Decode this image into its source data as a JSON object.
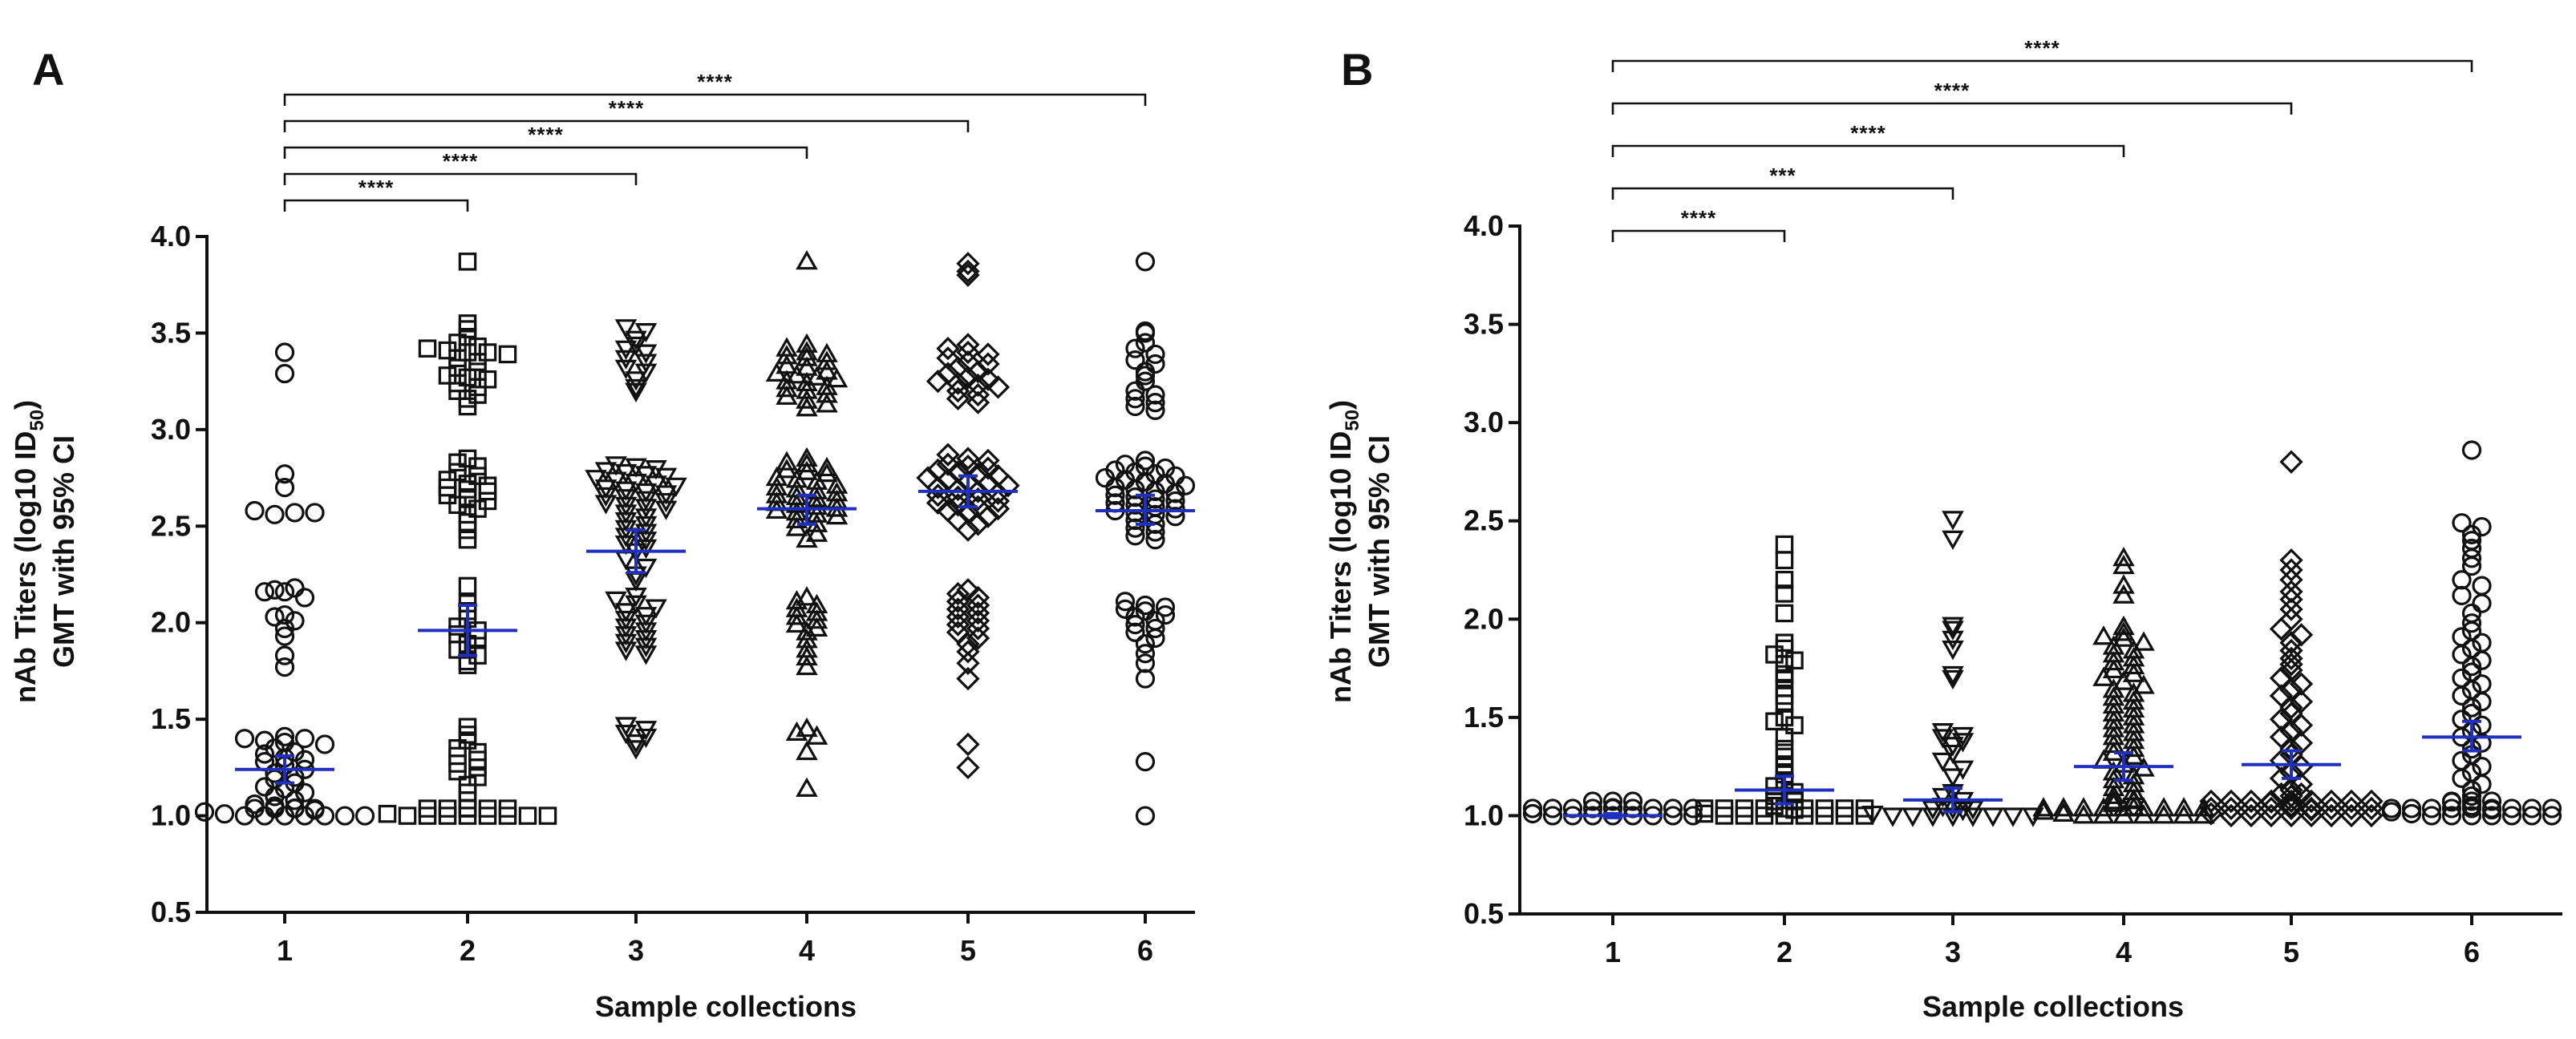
{
  "chart_data": [
    {
      "panel": "A",
      "type": "scatter",
      "subtype": "dot-plot with GMT and 95% CI",
      "xlabel": "Sample collections",
      "ylabel_line1": "nAb Titers (log10 ID50)",
      "ylabel_line1_parts": [
        "nAb Titers (log10 ID",
        "50",
        ")"
      ],
      "ylabel_line2": "GMT with 95% CI",
      "categories": [
        "1",
        "2",
        "3",
        "4",
        "5",
        "6"
      ],
      "ylim": [
        0.5,
        4.0
      ],
      "yticks": [
        "0.5",
        "1.0",
        "1.5",
        "2.0",
        "2.5",
        "3.0",
        "3.5",
        "4.0"
      ],
      "gmt_color": "#1f2fbf",
      "marker_color": "#111111",
      "series": [
        {
          "name": "1",
          "marker": "circle",
          "gmt": 1.24,
          "ci": [
            1.17,
            1.31
          ],
          "values": [
            3.4,
            3.29,
            2.77,
            2.7,
            2.58,
            2.56,
            2.57,
            2.57,
            2.17,
            2.18,
            2.16,
            2.16,
            2.13,
            2.03,
            2.01,
            2.04,
            1.97,
            1.93,
            1.77,
            1.83,
            1.4,
            1.41,
            1.39,
            1.38,
            1.4,
            1.37,
            1.35,
            1.32,
            1.33,
            1.3,
            1.29,
            1.28,
            1.26,
            1.24,
            1.22,
            1.2,
            1.19,
            1.17,
            1.15,
            1.14,
            1.12,
            1.1,
            1.08,
            1.06,
            1.05,
            1.04,
            1.03,
            1.02,
            1.01,
            1.0,
            1.0,
            1.0,
            1.0,
            1.0,
            1.0,
            1.0,
            1.0,
            1.0,
            1.0,
            1.0
          ]
        },
        {
          "name": "2",
          "marker": "square",
          "gmt": 1.96,
          "ci": [
            1.83,
            2.09
          ],
          "values": [
            3.87,
            3.55,
            3.52,
            3.48,
            3.45,
            3.43,
            3.42,
            3.41,
            3.4,
            3.4,
            3.39,
            3.37,
            3.35,
            3.32,
            3.3,
            3.28,
            3.27,
            3.26,
            3.24,
            3.22,
            3.2,
            3.18,
            3.16,
            3.12,
            2.85,
            2.83,
            2.81,
            2.78,
            2.76,
            2.74,
            2.72,
            2.71,
            2.7,
            2.69,
            2.68,
            2.66,
            2.65,
            2.63,
            2.61,
            2.59,
            2.56,
            2.52,
            2.48,
            2.43,
            2.19,
            2.1,
            2.06,
            2.02,
            1.98,
            1.96,
            1.94,
            1.92,
            1.89,
            1.86,
            1.83,
            1.8,
            1.78,
            1.46,
            1.42,
            1.39,
            1.35,
            1.33,
            1.31,
            1.29,
            1.27,
            1.25,
            1.23,
            1.2,
            1.16,
            1.12,
            1.08,
            1.04,
            1.01,
            1.0,
            1.0,
            1.0,
            1.0,
            1.0,
            1.0,
            1.0,
            1.0,
            1.0,
            1.0,
            1.0,
            1.0,
            1.0
          ]
        },
        {
          "name": "3",
          "marker": "triangle-down",
          "gmt": 2.37,
          "ci": [
            2.26,
            2.48
          ],
          "values": [
            3.53,
            3.51,
            3.47,
            3.44,
            3.42,
            3.4,
            3.37,
            3.35,
            3.32,
            3.3,
            3.26,
            3.22,
            3.2,
            2.82,
            2.81,
            2.8,
            2.79,
            2.78,
            2.77,
            2.76,
            2.75,
            2.74,
            2.73,
            2.72,
            2.71,
            2.7,
            2.69,
            2.68,
            2.67,
            2.66,
            2.65,
            2.64,
            2.63,
            2.62,
            2.61,
            2.6,
            2.59,
            2.57,
            2.55,
            2.53,
            2.51,
            2.49,
            2.47,
            2.45,
            2.43,
            2.41,
            2.39,
            2.37,
            2.33,
            2.29,
            2.25,
            2.22,
            2.14,
            2.12,
            2.1,
            2.08,
            2.06,
            2.04,
            2.02,
            2.0,
            1.98,
            1.96,
            1.94,
            1.92,
            1.9,
            1.88,
            1.86,
            1.84,
            1.47,
            1.45,
            1.43,
            1.41,
            1.38,
            1.35
          ]
        },
        {
          "name": "4",
          "marker": "triangle-up",
          "gmt": 2.59,
          "ci": [
            2.51,
            2.66
          ],
          "values": [
            3.87,
            3.44,
            3.42,
            3.4,
            3.39,
            3.38,
            3.37,
            3.35,
            3.33,
            3.32,
            3.3,
            3.29,
            3.28,
            3.27,
            3.26,
            3.25,
            3.24,
            3.22,
            3.21,
            3.2,
            3.18,
            3.17,
            3.15,
            3.13,
            3.11,
            2.85,
            2.83,
            2.82,
            2.8,
            2.79,
            2.78,
            2.77,
            2.75,
            2.74,
            2.73,
            2.71,
            2.7,
            2.69,
            2.68,
            2.67,
            2.66,
            2.65,
            2.64,
            2.63,
            2.62,
            2.61,
            2.6,
            2.59,
            2.58,
            2.57,
            2.56,
            2.55,
            2.53,
            2.51,
            2.49,
            2.46,
            2.43,
            2.13,
            2.11,
            2.09,
            2.07,
            2.05,
            2.03,
            2.01,
            1.99,
            1.97,
            1.95,
            1.91,
            1.86,
            1.82,
            1.77,
            1.45,
            1.43,
            1.41,
            1.33,
            1.14
          ]
        },
        {
          "name": "5",
          "marker": "diamond",
          "gmt": 2.68,
          "ci": [
            2.6,
            2.76
          ],
          "values": [
            3.86,
            3.82,
            3.8,
            3.44,
            3.42,
            3.4,
            3.39,
            3.37,
            3.35,
            3.34,
            3.32,
            3.3,
            3.29,
            3.27,
            3.26,
            3.25,
            3.24,
            3.23,
            3.22,
            3.2,
            3.18,
            3.16,
            3.14,
            2.87,
            2.85,
            2.84,
            2.82,
            2.81,
            2.8,
            2.79,
            2.78,
            2.77,
            2.76,
            2.75,
            2.74,
            2.73,
            2.72,
            2.71,
            2.7,
            2.69,
            2.68,
            2.67,
            2.66,
            2.65,
            2.64,
            2.63,
            2.62,
            2.61,
            2.6,
            2.59,
            2.58,
            2.57,
            2.55,
            2.53,
            2.51,
            2.48,
            2.17,
            2.15,
            2.13,
            2.11,
            2.09,
            2.07,
            2.05,
            2.03,
            2.01,
            1.99,
            1.97,
            1.95,
            1.92,
            1.89,
            1.85,
            1.79,
            1.71,
            1.37,
            1.25
          ]
        },
        {
          "name": "6",
          "marker": "circle",
          "gmt": 2.58,
          "ci": [
            2.51,
            2.66
          ],
          "values": [
            3.87,
            3.51,
            3.5,
            3.45,
            3.42,
            3.39,
            3.36,
            3.34,
            3.3,
            3.28,
            3.25,
            3.2,
            3.18,
            3.16,
            3.14,
            3.12,
            3.1,
            2.84,
            2.82,
            2.81,
            2.8,
            2.79,
            2.78,
            2.77,
            2.76,
            2.75,
            2.74,
            2.73,
            2.72,
            2.71,
            2.7,
            2.69,
            2.68,
            2.67,
            2.66,
            2.65,
            2.64,
            2.63,
            2.62,
            2.61,
            2.6,
            2.59,
            2.58,
            2.57,
            2.56,
            2.55,
            2.53,
            2.51,
            2.49,
            2.47,
            2.45,
            2.43,
            2.11,
            2.09,
            2.08,
            2.07,
            2.06,
            2.04,
            2.03,
            2.01,
            1.99,
            1.97,
            1.95,
            1.92,
            1.89,
            1.84,
            1.79,
            1.71,
            1.28,
            1.0
          ]
        }
      ],
      "comparisons": [
        {
          "from": "1",
          "to": "2",
          "label": "****"
        },
        {
          "from": "1",
          "to": "3",
          "label": "****"
        },
        {
          "from": "1",
          "to": "4",
          "label": "****"
        },
        {
          "from": "1",
          "to": "5",
          "label": "****"
        },
        {
          "from": "1",
          "to": "6",
          "label": "****"
        }
      ]
    },
    {
      "panel": "B",
      "type": "scatter",
      "subtype": "dot-plot with GMT and 95% CI",
      "xlabel": "Sample collections",
      "ylabel_line1": "nAb Titers (log10 ID50)",
      "ylabel_line1_parts": [
        "nAb Titers (log10 ID",
        "50",
        ")"
      ],
      "ylabel_line2": "GMT with 95% CI",
      "categories": [
        "1",
        "2",
        "3",
        "4",
        "5",
        "6"
      ],
      "ylim": [
        0.5,
        4.0
      ],
      "yticks": [
        "0.5",
        "1.0",
        "1.5",
        "2.0",
        "2.5",
        "3.0",
        "3.5",
        "4.0"
      ],
      "gmt_color": "#1f2fbf",
      "marker_color": "#111111",
      "series": [
        {
          "name": "1",
          "marker": "circle",
          "gmt": 1.0,
          "ci": [
            0.99,
            1.01
          ],
          "values": [
            1.04,
            1.01,
            1.0,
            1.0,
            1.0,
            1.0,
            1.0,
            1.0,
            1.0,
            1.0,
            1.0,
            1.0,
            1.0,
            1.0,
            1.0,
            1.0,
            1.0,
            1.0,
            1.0,
            1.0,
            1.0,
            1.0
          ]
        },
        {
          "name": "2",
          "marker": "square",
          "gmt": 1.13,
          "ci": [
            1.06,
            1.2
          ],
          "values": [
            2.38,
            2.3,
            2.2,
            2.13,
            2.03,
            1.88,
            1.85,
            1.82,
            1.79,
            1.77,
            1.72,
            1.7,
            1.65,
            1.61,
            1.57,
            1.5,
            1.48,
            1.46,
            1.4,
            1.34,
            1.3,
            1.25,
            1.21,
            1.18,
            1.15,
            1.12,
            1.1,
            1.08,
            1.05,
            1.03,
            1.01,
            1.0,
            1.0,
            1.0,
            1.0,
            1.0,
            1.0,
            1.0,
            1.0,
            1.0,
            1.0,
            1.0,
            1.0,
            1.0,
            1.0,
            1.0,
            1.0,
            1.0,
            1.0,
            1.0
          ]
        },
        {
          "name": "3",
          "marker": "triangle-down",
          "gmt": 1.08,
          "ci": [
            1.02,
            1.14
          ],
          "values": [
            2.51,
            2.41,
            1.97,
            1.95,
            1.9,
            1.85,
            1.72,
            1.7,
            1.43,
            1.41,
            1.4,
            1.38,
            1.36,
            1.32,
            1.28,
            1.24,
            1.2,
            1.12,
            1.1,
            1.08,
            1.05,
            1.03,
            1.01,
            1.0,
            1.0,
            1.0,
            1.0,
            1.0,
            1.0,
            1.0,
            1.0,
            1.0,
            1.0,
            1.0
          ]
        },
        {
          "name": "4",
          "marker": "triangle-up",
          "gmt": 1.25,
          "ci": [
            1.18,
            1.32
          ],
          "values": [
            2.31,
            2.27,
            2.17,
            2.12,
            1.96,
            1.93,
            1.91,
            1.9,
            1.88,
            1.86,
            1.84,
            1.82,
            1.8,
            1.78,
            1.76,
            1.74,
            1.72,
            1.7,
            1.68,
            1.66,
            1.64,
            1.62,
            1.6,
            1.58,
            1.56,
            1.54,
            1.52,
            1.5,
            1.48,
            1.46,
            1.44,
            1.42,
            1.4,
            1.38,
            1.36,
            1.34,
            1.32,
            1.3,
            1.28,
            1.26,
            1.24,
            1.22,
            1.2,
            1.18,
            1.16,
            1.14,
            1.12,
            1.1,
            1.08,
            1.06,
            1.04,
            1.02,
            1.01,
            1.0,
            1.0,
            1.0,
            1.0,
            1.0,
            1.0,
            1.0,
            1.0,
            1.0,
            1.0,
            1.0,
            1.0,
            1.0,
            1.0,
            1.0,
            1.0,
            1.0,
            1.0
          ]
        },
        {
          "name": "5",
          "marker": "diamond",
          "gmt": 1.26,
          "ci": [
            1.19,
            1.33
          ],
          "values": [
            2.8,
            2.3,
            2.25,
            2.2,
            2.14,
            2.1,
            2.05,
            2.0,
            1.95,
            1.92,
            1.88,
            1.84,
            1.8,
            1.77,
            1.74,
            1.7,
            1.67,
            1.64,
            1.61,
            1.58,
            1.55,
            1.52,
            1.49,
            1.46,
            1.43,
            1.4,
            1.37,
            1.34,
            1.31,
            1.28,
            1.25,
            1.22,
            1.19,
            1.16,
            1.13,
            1.1,
            1.07,
            1.05,
            1.03,
            1.01,
            1.0,
            1.0,
            1.0,
            1.0,
            1.0,
            1.0,
            1.0,
            1.0,
            1.0,
            1.0,
            1.0,
            1.0,
            1.0,
            1.0,
            1.0,
            1.0,
            1.0,
            1.0,
            1.0,
            1.0,
            1.0,
            1.0,
            1.0,
            1.0,
            1.0,
            1.0,
            1.0,
            1.0
          ]
        },
        {
          "name": "6",
          "marker": "circle",
          "gmt": 1.4,
          "ci": [
            1.33,
            1.48
          ],
          "values": [
            2.86,
            2.49,
            2.47,
            2.43,
            2.4,
            2.36,
            2.31,
            2.27,
            2.2,
            2.17,
            2.12,
            2.08,
            2.03,
            1.98,
            1.94,
            1.91,
            1.88,
            1.85,
            1.82,
            1.79,
            1.76,
            1.73,
            1.7,
            1.67,
            1.64,
            1.61,
            1.58,
            1.55,
            1.52,
            1.49,
            1.46,
            1.43,
            1.4,
            1.37,
            1.34,
            1.31,
            1.28,
            1.25,
            1.22,
            1.19,
            1.16,
            1.13,
            1.1,
            1.07,
            1.05,
            1.03,
            1.02,
            1.01,
            1.0,
            1.0,
            1.0,
            1.0,
            1.0,
            1.0,
            1.0,
            1.0,
            1.0,
            1.0,
            1.0,
            1.0,
            1.0,
            1.0,
            1.0,
            1.0,
            1.0,
            1.0,
            1.0
          ]
        }
      ],
      "comparisons": [
        {
          "from": "1",
          "to": "2",
          "label": "****"
        },
        {
          "from": "1",
          "to": "3",
          "label": "***"
        },
        {
          "from": "1",
          "to": "4",
          "label": "****"
        },
        {
          "from": "1",
          "to": "5",
          "label": "****"
        },
        {
          "from": "1",
          "to": "6",
          "label": "****"
        }
      ]
    }
  ]
}
